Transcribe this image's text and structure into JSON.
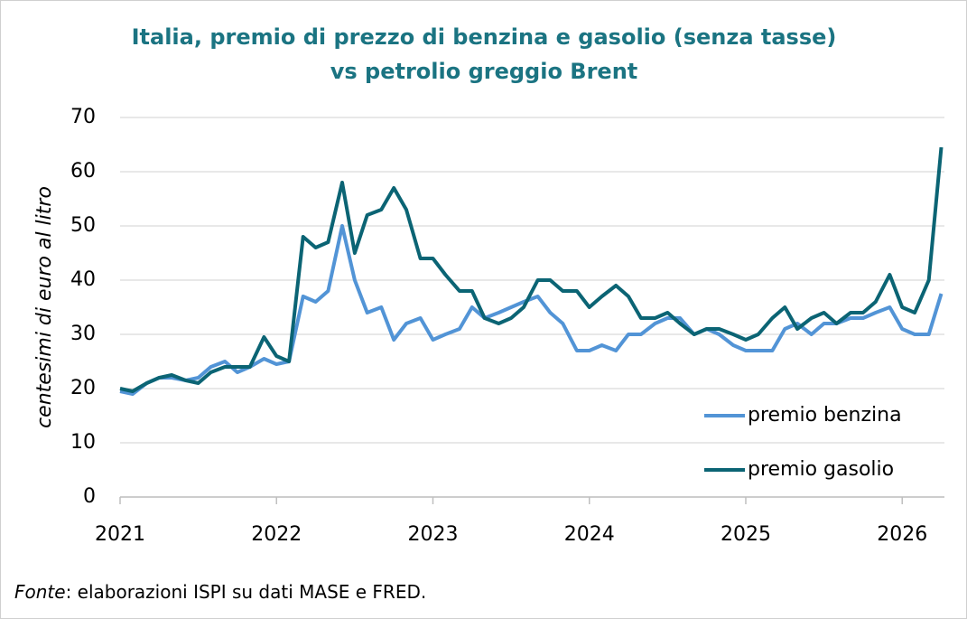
{
  "chart_data": {
    "type": "line",
    "title": [
      "Italia, premio di prezzo di benzina e gasolio (senza tasse)",
      "vs petrolio greggio Brent"
    ],
    "y_label": "centesimi di euro al litro",
    "source_label": "Fonte",
    "source_text": ": elaborazioni ISPI su dati MASE e FRED.",
    "x": [
      2021,
      2021.08,
      2021.17,
      2021.25,
      2021.33,
      2021.42,
      2021.5,
      2021.58,
      2021.67,
      2021.75,
      2021.83,
      2021.92,
      2022,
      2022.08,
      2022.17,
      2022.25,
      2022.33,
      2022.42,
      2022.5,
      2022.58,
      2022.67,
      2022.75,
      2022.83,
      2022.92,
      2023,
      2023.08,
      2023.17,
      2023.25,
      2023.33,
      2023.42,
      2023.5,
      2023.58,
      2023.67,
      2023.75,
      2023.83,
      2023.92,
      2024,
      2024.08,
      2024.17,
      2024.25,
      2024.33,
      2024.42,
      2024.5,
      2024.58,
      2024.67,
      2024.75,
      2024.83,
      2024.92,
      2025,
      2025.08,
      2025.17,
      2025.25,
      2025.33,
      2025.42,
      2025.5,
      2025.58,
      2025.67,
      2025.75,
      2025.83,
      2025.92,
      2026,
      2026.08,
      2026.17,
      2026.25
    ],
    "series": [
      {
        "name": "premio benzina",
        "color": "#5294d6",
        "values": [
          19.5,
          19,
          21,
          22,
          22,
          21.5,
          22,
          24,
          25,
          23,
          24,
          25.5,
          24.5,
          25,
          37,
          36,
          38,
          50,
          40,
          34,
          35,
          29,
          32,
          33,
          29,
          30,
          31,
          35,
          33,
          34,
          35,
          36,
          37,
          34,
          32,
          27,
          27,
          28,
          27,
          30,
          30,
          32,
          33,
          33,
          30,
          31,
          30,
          28,
          27,
          27,
          27,
          31,
          32,
          30,
          32,
          32,
          33,
          33,
          34,
          35,
          31,
          30,
          30,
          37.5
        ]
      },
      {
        "name": "premio gasolio",
        "color": "#0b6474",
        "values": [
          20,
          19.5,
          21,
          22,
          22.5,
          21.5,
          21,
          23,
          24,
          24,
          24,
          29.5,
          26,
          25,
          48,
          46,
          47,
          58,
          45,
          52,
          53,
          57,
          53,
          44,
          44,
          41,
          38,
          38,
          33,
          32,
          33,
          35,
          40,
          40,
          38,
          38,
          35,
          37,
          39,
          37,
          33,
          33,
          34,
          32,
          30,
          31,
          31,
          30,
          29,
          30,
          33,
          35,
          31,
          33,
          34,
          32,
          34,
          34,
          36,
          41,
          35,
          34,
          40,
          64.5
        ]
      }
    ],
    "xlim": [
      2021,
      2026.27
    ],
    "xticks": [
      2021,
      2022,
      2023,
      2024,
      2025,
      2026
    ],
    "ylim": [
      0,
      70
    ],
    "yticks": [
      0,
      10,
      20,
      30,
      40,
      50,
      60,
      70
    ],
    "grid": true,
    "legend": "lower right"
  }
}
